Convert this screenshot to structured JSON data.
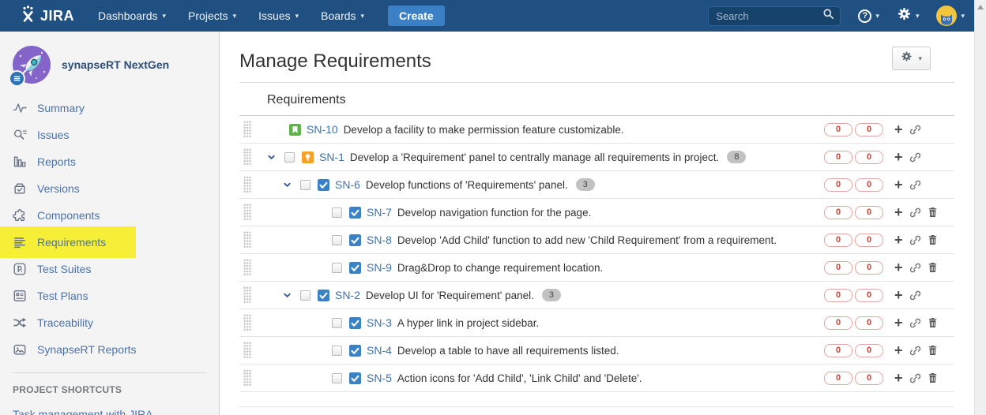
{
  "navbar": {
    "logo_text": "JIRA",
    "menu": [
      "Dashboards",
      "Projects",
      "Issues",
      "Boards"
    ],
    "create_label": "Create",
    "search_placeholder": "Search"
  },
  "sidebar": {
    "project_name": "synapseRT NextGen",
    "items": [
      {
        "label": "Summary",
        "icon": "summary-icon",
        "active": false
      },
      {
        "label": "Issues",
        "icon": "issues-icon",
        "active": false
      },
      {
        "label": "Reports",
        "icon": "reports-icon",
        "active": false
      },
      {
        "label": "Versions",
        "icon": "versions-icon",
        "active": false
      },
      {
        "label": "Components",
        "icon": "components-icon",
        "active": false
      },
      {
        "label": "Requirements",
        "icon": "requirements-icon",
        "active": true
      },
      {
        "label": "Test Suites",
        "icon": "test-suites-icon",
        "active": false
      },
      {
        "label": "Test Plans",
        "icon": "test-plans-icon",
        "active": false
      },
      {
        "label": "Traceability",
        "icon": "traceability-icon",
        "active": false
      },
      {
        "label": "SynapseRT Reports",
        "icon": "report-image-icon",
        "active": false
      }
    ],
    "shortcuts_header": "PROJECT SHORTCUTS",
    "shortcut_link": "Task management with JIRA"
  },
  "main": {
    "title": "Manage Requirements",
    "section_title": "Requirements",
    "rows": [
      {
        "key": "SN-10",
        "summary": "Develop a facility to make permission feature customizable.",
        "type": "story",
        "level": 0,
        "chevron": false,
        "checkbox": false,
        "checked": false,
        "count": null,
        "badges": [
          "0",
          "0"
        ],
        "deletable": false
      },
      {
        "key": "SN-1",
        "summary": "Develop a 'Requirement' panel to centrally manage all requirements in project.",
        "type": "new-feature",
        "level": 0,
        "chevron": true,
        "checkbox": true,
        "checked": false,
        "count": "8",
        "badges": [
          "0",
          "0"
        ],
        "deletable": false
      },
      {
        "key": "SN-6",
        "summary": "Develop functions of 'Requirements' panel.",
        "type": "task",
        "level": 1,
        "chevron": true,
        "checkbox": true,
        "checked": false,
        "count": "3",
        "badges": [
          "0",
          "0"
        ],
        "deletable": false
      },
      {
        "key": "SN-7",
        "summary": "Develop navigation function for the page.",
        "type": "task",
        "level": 2,
        "chevron": false,
        "checkbox": true,
        "checked": false,
        "count": null,
        "badges": [
          "0",
          "0"
        ],
        "deletable": true
      },
      {
        "key": "SN-8",
        "summary": "Develop 'Add Child' function to add new 'Child Requirement' from a requirement.",
        "type": "task",
        "level": 2,
        "chevron": false,
        "checkbox": true,
        "checked": false,
        "count": null,
        "badges": [
          "0",
          "0"
        ],
        "deletable": true
      },
      {
        "key": "SN-9",
        "summary": "Drag&Drop to change requirement location.",
        "type": "task",
        "level": 2,
        "chevron": false,
        "checkbox": true,
        "checked": false,
        "count": null,
        "badges": [
          "0",
          "0"
        ],
        "deletable": true
      },
      {
        "key": "SN-2",
        "summary": "Develop UI for 'Requirement' panel.",
        "type": "task",
        "level": 1,
        "chevron": true,
        "checkbox": true,
        "checked": false,
        "count": "3",
        "badges": [
          "0",
          "0"
        ],
        "deletable": false
      },
      {
        "key": "SN-3",
        "summary": "A hyper link in project sidebar.",
        "type": "task",
        "level": 2,
        "chevron": false,
        "checkbox": true,
        "checked": false,
        "count": null,
        "badges": [
          "0",
          "0"
        ],
        "deletable": true
      },
      {
        "key": "SN-4",
        "summary": "Develop a table to have all requirements listed.",
        "type": "task",
        "level": 2,
        "chevron": false,
        "checkbox": true,
        "checked": false,
        "count": null,
        "badges": [
          "0",
          "0"
        ],
        "deletable": true
      },
      {
        "key": "SN-5",
        "summary": "Action icons for 'Add Child', 'Link Child' and 'Delete'.",
        "type": "task",
        "level": 2,
        "chevron": false,
        "checkbox": true,
        "checked": false,
        "count": null,
        "badges": [
          "0",
          "0"
        ],
        "deletable": true
      }
    ]
  },
  "colors": {
    "navbar_bg": "#205081",
    "create_btn": "#3b7fc4",
    "link_blue": "#3b73af",
    "sidebar_bg": "#f4f4f4",
    "sidebar_link": "#4a72ab",
    "highlight_yellow": "#f7ee38",
    "badge_red": "#cc4437",
    "badge_border": "#e2a59e",
    "count_pill_bg": "#c2c2c2",
    "story_green": "#62b24c",
    "feature_orange": "#f6a02c",
    "task_blue": "#3b82c4"
  }
}
